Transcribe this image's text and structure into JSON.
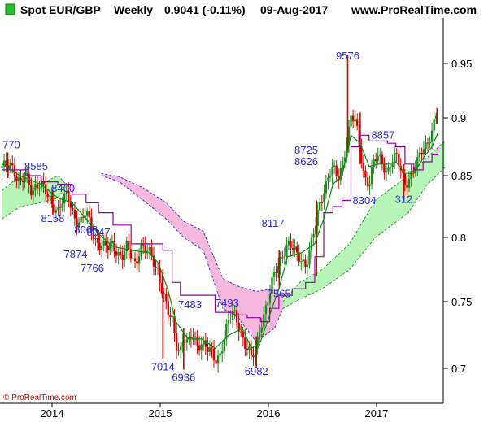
{
  "header": {
    "title": "Spot EUR/GBP",
    "timeframe": "Weekly",
    "last_price": "0.9041 (-0.11%)",
    "date": "09-Aug-2017",
    "site": "www.ProRealTime.com"
  },
  "copyright": "© ProRealTime.com",
  "colors": {
    "up_candle": "#1f8a1f",
    "down_candle": "#d40000",
    "kumo_bullish": "#b8f5b8",
    "kumo_bearish": "#f5b8dc",
    "kijun": "#9400a0",
    "tenkan": "#009000",
    "annotation": "#2a2acf",
    "header_icon": "#28c028"
  },
  "chart_data": {
    "type": "candlestick",
    "indicator": "ichimoku",
    "y_axis": {
      "ticks": [
        "0.7",
        "0.75",
        "0.8",
        "0.85",
        "0.9",
        "0.95"
      ],
      "ylim": [
        0.685,
        0.98
      ]
    },
    "x_axis": {
      "ticks": [
        "2014",
        "2015",
        "2016",
        "2017"
      ]
    },
    "grid": false,
    "legend": "none",
    "annotations": [
      {
        "label": "770",
        "date": "2013-09-01",
        "value": 0.877
      },
      {
        "label": "8585",
        "date": "2013-11-24",
        "value": 0.8585
      },
      {
        "label": "8400",
        "date": "2014-02-23",
        "value": 0.84
      },
      {
        "label": "8158",
        "date": "2014-01-19",
        "value": 0.8158
      },
      {
        "label": "8066",
        "date": "2014-05-11",
        "value": 0.8066
      },
      {
        "label": "8047",
        "date": "2014-06-22",
        "value": 0.8047
      },
      {
        "label": "7874",
        "date": "2014-04-06",
        "value": 0.7874
      },
      {
        "label": "7766",
        "date": "2014-06-01",
        "value": 0.7766
      },
      {
        "label": "7483",
        "date": "2015-04-26",
        "value": 0.7483
      },
      {
        "label": "7493",
        "date": "2015-08-30",
        "value": 0.7493
      },
      {
        "label": "7565",
        "date": "2016-02-21",
        "value": 0.7565
      },
      {
        "label": "7014",
        "date": "2015-01-25",
        "value": 0.7014
      },
      {
        "label": "6936",
        "date": "2015-04-05",
        "value": 0.6936
      },
      {
        "label": "6982",
        "date": "2015-12-06",
        "value": 0.6982
      },
      {
        "label": "8117",
        "date": "2016-01-31",
        "value": 0.8117
      },
      {
        "label": "8626",
        "date": "2016-05-22",
        "value": 0.8626
      },
      {
        "label": "8725",
        "date": "2016-05-22",
        "value": 0.8725
      },
      {
        "label": "9576",
        "date": "2016-10-09",
        "value": 0.9576
      },
      {
        "label": "8857",
        "date": "2017-02-05",
        "value": 0.8857
      },
      {
        "label": "8304",
        "date": "2016-12-04",
        "value": 0.8304
      },
      {
        "label": "312",
        "date": "2017-04-16",
        "value": 0.8312
      }
    ],
    "price_path": [
      [
        "2013-08-01",
        0.855
      ],
      [
        "2013-08-18",
        0.858
      ],
      [
        "2013-09-01",
        0.862
      ],
      [
        "2013-09-15",
        0.853
      ],
      [
        "2013-10-01",
        0.842
      ],
      [
        "2013-10-20",
        0.848
      ],
      [
        "2013-11-10",
        0.838
      ],
      [
        "2013-11-24",
        0.845
      ],
      [
        "2013-12-10",
        0.842
      ],
      [
        "2014-01-01",
        0.832
      ],
      [
        "2014-01-19",
        0.828
      ],
      [
        "2014-02-05",
        0.823
      ],
      [
        "2014-02-23",
        0.829
      ],
      [
        "2014-03-09",
        0.833
      ],
      [
        "2014-03-25",
        0.822
      ],
      [
        "2014-04-10",
        0.815
      ],
      [
        "2014-04-25",
        0.813
      ],
      [
        "2014-05-11",
        0.818
      ],
      [
        "2014-05-25",
        0.81
      ],
      [
        "2014-06-10",
        0.8
      ],
      [
        "2014-06-22",
        0.797
      ],
      [
        "2014-07-10",
        0.792
      ],
      [
        "2014-07-25",
        0.79
      ],
      [
        "2014-08-10",
        0.795
      ],
      [
        "2014-08-25",
        0.79
      ],
      [
        "2014-09-10",
        0.785
      ],
      [
        "2014-09-25",
        0.79
      ],
      [
        "2014-10-10",
        0.785
      ],
      [
        "2014-10-25",
        0.78
      ],
      [
        "2014-11-10",
        0.795
      ],
      [
        "2014-11-25",
        0.79
      ],
      [
        "2014-12-10",
        0.786
      ],
      [
        "2014-12-25",
        0.781
      ],
      [
        "2015-01-10",
        0.775
      ],
      [
        "2015-01-25",
        0.758
      ],
      [
        "2015-02-10",
        0.74
      ],
      [
        "2015-02-25",
        0.735
      ],
      [
        "2015-03-10",
        0.72
      ],
      [
        "2015-03-25",
        0.715
      ],
      [
        "2015-04-05",
        0.725
      ],
      [
        "2015-04-20",
        0.715
      ],
      [
        "2015-05-05",
        0.725
      ],
      [
        "2015-05-20",
        0.718
      ],
      [
        "2015-06-05",
        0.722
      ],
      [
        "2015-06-20",
        0.715
      ],
      [
        "2015-07-05",
        0.71
      ],
      [
        "2015-07-20",
        0.705
      ],
      [
        "2015-08-05",
        0.712
      ],
      [
        "2015-08-20",
        0.725
      ],
      [
        "2015-09-05",
        0.735
      ],
      [
        "2015-09-20",
        0.74
      ],
      [
        "2015-10-05",
        0.735
      ],
      [
        "2015-10-20",
        0.725
      ],
      [
        "2015-11-05",
        0.715
      ],
      [
        "2015-11-20",
        0.705
      ],
      [
        "2015-12-06",
        0.715
      ],
      [
        "2015-12-20",
        0.735
      ],
      [
        "2016-01-05",
        0.745
      ],
      [
        "2016-01-20",
        0.755
      ],
      [
        "2016-02-05",
        0.77
      ],
      [
        "2016-02-20",
        0.78
      ],
      [
        "2016-03-05",
        0.79
      ],
      [
        "2016-03-20",
        0.795
      ],
      [
        "2016-04-05",
        0.79
      ],
      [
        "2016-04-20",
        0.785
      ],
      [
        "2016-05-05",
        0.785
      ],
      [
        "2016-05-20",
        0.78
      ],
      [
        "2016-06-05",
        0.79
      ],
      [
        "2016-06-20",
        0.805
      ],
      [
        "2016-07-05",
        0.825
      ],
      [
        "2016-07-20",
        0.84
      ],
      [
        "2016-08-05",
        0.85
      ],
      [
        "2016-08-20",
        0.855
      ],
      [
        "2016-09-05",
        0.845
      ],
      [
        "2016-09-20",
        0.86
      ],
      [
        "2016-10-05",
        0.88
      ],
      [
        "2016-10-20",
        0.9
      ],
      [
        "2016-11-05",
        0.895
      ],
      [
        "2016-11-20",
        0.87
      ],
      [
        "2016-12-05",
        0.85
      ],
      [
        "2016-12-20",
        0.845
      ],
      [
        "2017-01-05",
        0.86
      ],
      [
        "2017-01-20",
        0.865
      ],
      [
        "2017-02-05",
        0.86
      ],
      [
        "2017-02-20",
        0.855
      ],
      [
        "2017-03-05",
        0.862
      ],
      [
        "2017-03-20",
        0.865
      ],
      [
        "2017-04-05",
        0.855
      ],
      [
        "2017-04-20",
        0.845
      ],
      [
        "2017-05-05",
        0.85
      ],
      [
        "2017-05-20",
        0.855
      ],
      [
        "2017-06-05",
        0.862
      ],
      [
        "2017-06-20",
        0.875
      ],
      [
        "2017-07-05",
        0.88
      ],
      [
        "2017-07-20",
        0.89
      ],
      [
        "2017-08-09",
        0.9041
      ]
    ],
    "spikes": [
      [
        "2013-08-20",
        0.87,
        0.848
      ],
      [
        "2014-01-19",
        0.838,
        0.818
      ],
      [
        "2014-06-22",
        0.806,
        0.79
      ],
      [
        "2015-01-25",
        0.775,
        0.707
      ],
      [
        "2015-04-05",
        0.73,
        0.699
      ],
      [
        "2015-12-06",
        0.724,
        0.7
      ],
      [
        "2016-02-21",
        0.79,
        0.76
      ],
      [
        "2016-06-26",
        0.83,
        0.77
      ],
      [
        "2016-10-09",
        0.9576,
        0.87
      ],
      [
        "2016-11-20",
        0.905,
        0.86
      ],
      [
        "2017-04-16",
        0.86,
        0.83
      ],
      [
        "2017-08-06",
        0.909,
        0.895
      ]
    ],
    "tenkan": [
      [
        "2013-08-01",
        0.86
      ],
      [
        "2013-10-01",
        0.85
      ],
      [
        "2013-12-10",
        0.843
      ],
      [
        "2014-02-05",
        0.832
      ],
      [
        "2014-03-25",
        0.828
      ],
      [
        "2014-05-11",
        0.815
      ],
      [
        "2014-06-22",
        0.803
      ],
      [
        "2014-08-10",
        0.793
      ],
      [
        "2014-10-10",
        0.79
      ],
      [
        "2014-12-10",
        0.788
      ],
      [
        "2015-01-10",
        0.78
      ],
      [
        "2015-02-10",
        0.76
      ],
      [
        "2015-03-10",
        0.735
      ],
      [
        "2015-04-20",
        0.722
      ],
      [
        "2015-06-05",
        0.722
      ],
      [
        "2015-07-20",
        0.715
      ],
      [
        "2015-09-05",
        0.725
      ],
      [
        "2015-10-20",
        0.73
      ],
      [
        "2015-11-20",
        0.715
      ],
      [
        "2015-12-20",
        0.72
      ],
      [
        "2016-01-20",
        0.74
      ],
      [
        "2016-02-20",
        0.76
      ],
      [
        "2016-03-20",
        0.785
      ],
      [
        "2016-05-05",
        0.788
      ],
      [
        "2016-06-20",
        0.795
      ],
      [
        "2016-07-20",
        0.815
      ],
      [
        "2016-08-20",
        0.843
      ],
      [
        "2016-09-20",
        0.85
      ],
      [
        "2016-10-20",
        0.885
      ],
      [
        "2016-11-20",
        0.878
      ],
      [
        "2016-12-20",
        0.858
      ],
      [
        "2017-01-20",
        0.86
      ],
      [
        "2017-02-20",
        0.86
      ],
      [
        "2017-03-20",
        0.862
      ],
      [
        "2017-04-20",
        0.852
      ],
      [
        "2017-05-20",
        0.852
      ],
      [
        "2017-06-20",
        0.865
      ],
      [
        "2017-07-20",
        0.875
      ],
      [
        "2017-08-09",
        0.887
      ]
    ],
    "kijun": [
      [
        "2013-08-01",
        0.855
      ],
      [
        "2013-10-20",
        0.85
      ],
      [
        "2013-12-10",
        0.845
      ],
      [
        "2014-02-05",
        0.843
      ],
      [
        "2014-03-25",
        0.835
      ],
      [
        "2014-05-11",
        0.828
      ],
      [
        "2014-06-22",
        0.82
      ],
      [
        "2014-08-10",
        0.81
      ],
      [
        "2014-10-10",
        0.795
      ],
      [
        "2014-12-10",
        0.795
      ],
      [
        "2015-01-25",
        0.79
      ],
      [
        "2015-02-25",
        0.765
      ],
      [
        "2015-03-25",
        0.755
      ],
      [
        "2015-06-05",
        0.755
      ],
      [
        "2015-07-20",
        0.742
      ],
      [
        "2015-09-20",
        0.74
      ],
      [
        "2015-11-05",
        0.738
      ],
      [
        "2015-12-20",
        0.735
      ],
      [
        "2016-01-20",
        0.745
      ],
      [
        "2016-02-20",
        0.755
      ],
      [
        "2016-04-05",
        0.76
      ],
      [
        "2016-05-20",
        0.765
      ],
      [
        "2016-06-20",
        0.785
      ],
      [
        "2016-07-20",
        0.82
      ],
      [
        "2016-08-20",
        0.825
      ],
      [
        "2016-09-20",
        0.83
      ],
      [
        "2016-10-20",
        0.875
      ],
      [
        "2016-11-20",
        0.885
      ],
      [
        "2016-12-20",
        0.88
      ],
      [
        "2017-01-20",
        0.88
      ],
      [
        "2017-02-20",
        0.878
      ],
      [
        "2017-03-20",
        0.875
      ],
      [
        "2017-04-20",
        0.86
      ],
      [
        "2017-05-20",
        0.855
      ],
      [
        "2017-06-20",
        0.862
      ],
      [
        "2017-07-20",
        0.868
      ],
      [
        "2017-08-09",
        0.875
      ]
    ],
    "kumo": [
      {
        "kind": "bullish",
        "top": [
          [
            "2013-08-01",
            0.838
          ],
          [
            "2013-10-01",
            0.85
          ],
          [
            "2013-12-10",
            0.843
          ],
          [
            "2014-02-05",
            0.85
          ],
          [
            "2014-03-09",
            0.842
          ]
        ],
        "bottom": [
          [
            "2013-08-01",
            0.815
          ],
          [
            "2013-10-01",
            0.825
          ],
          [
            "2013-12-10",
            0.828
          ],
          [
            "2014-02-05",
            0.832
          ],
          [
            "2014-03-09",
            0.842
          ]
        ]
      },
      {
        "kind": "bearish",
        "top": [
          [
            "2014-07-01",
            0.852
          ],
          [
            "2014-09-01",
            0.849
          ],
          [
            "2014-11-20",
            0.84
          ],
          [
            "2015-02-05",
            0.828
          ],
          [
            "2015-04-05",
            0.813
          ],
          [
            "2015-06-10",
            0.805
          ],
          [
            "2015-08-15",
            0.768
          ],
          [
            "2015-10-05",
            0.762
          ],
          [
            "2015-12-05",
            0.758
          ],
          [
            "2016-02-05",
            0.76
          ],
          [
            "2016-03-05",
            0.755
          ]
        ],
        "bottom": [
          [
            "2014-07-01",
            0.85
          ],
          [
            "2014-09-01",
            0.845
          ],
          [
            "2014-11-20",
            0.83
          ],
          [
            "2015-02-05",
            0.815
          ],
          [
            "2015-04-05",
            0.8
          ],
          [
            "2015-06-10",
            0.79
          ],
          [
            "2015-08-15",
            0.745
          ],
          [
            "2015-10-05",
            0.738
          ],
          [
            "2015-12-05",
            0.72
          ],
          [
            "2016-02-05",
            0.73
          ],
          [
            "2016-03-05",
            0.745
          ]
        ]
      },
      {
        "kind": "bullish",
        "top": [
          [
            "2016-03-05",
            0.75
          ],
          [
            "2016-05-01",
            0.765
          ],
          [
            "2016-07-15",
            0.775
          ],
          [
            "2016-10-15",
            0.795
          ],
          [
            "2017-01-10",
            0.83
          ],
          [
            "2017-05-01",
            0.85
          ],
          [
            "2017-07-01",
            0.865
          ],
          [
            "2017-09-01",
            0.88
          ]
        ],
        "bottom": [
          [
            "2016-03-05",
            0.745
          ],
          [
            "2016-05-01",
            0.752
          ],
          [
            "2016-07-15",
            0.76
          ],
          [
            "2016-10-15",
            0.775
          ],
          [
            "2017-01-10",
            0.8
          ],
          [
            "2017-05-01",
            0.82
          ],
          [
            "2017-07-01",
            0.842
          ],
          [
            "2017-09-01",
            0.857
          ]
        ]
      }
    ]
  }
}
